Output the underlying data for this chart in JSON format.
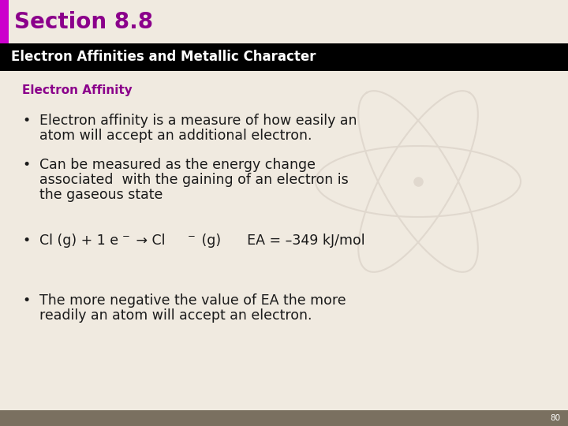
{
  "section_title": "Section 8.8",
  "section_title_color": "#8B008B",
  "header_text": "Electron Affinities and Metallic Character",
  "header_bg": "#000000",
  "header_text_color": "#FFFFFF",
  "subheader": "Electron Affinity",
  "subheader_color": "#8B008B",
  "bullet1_line1": "Electron affinity is a measure of how easily an",
  "bullet1_line2": "atom will accept an additional electron.",
  "bullet2_line1": "Can be measured as the energy change",
  "bullet2_line2": "associated  with the gaining of an electron is",
  "bullet2_line3": "the gaseous state",
  "bullet4_line1": "The more negative the value of EA the more",
  "bullet4_line2": "readily an atom will accept an electron.",
  "bg_color": "#F0EAE0",
  "left_bar_color": "#CC00CC",
  "body_text_color": "#1a1a1a",
  "page_number": "80",
  "footer_bg": "#7A7060",
  "subheader_color_hex": "#8B008B"
}
